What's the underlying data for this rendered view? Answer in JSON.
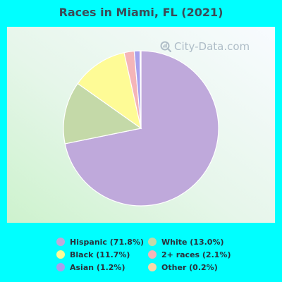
{
  "chart_data": {
    "type": "pie",
    "title": "Races in Miami, FL (2021)",
    "watermark": "City-Data.com",
    "slices": [
      {
        "label": "Hispanic (71.8%)",
        "value": 71.8,
        "color": "#bfa9db"
      },
      {
        "label": "White (13.0%)",
        "value": 13.0,
        "color": "#c4d9a8"
      },
      {
        "label": "Black (11.7%)",
        "value": 11.7,
        "color": "#fefb96"
      },
      {
        "label": "2+ races (2.1%)",
        "value": 2.1,
        "color": "#f5b5b8"
      },
      {
        "label": "Asian (1.2%)",
        "value": 1.2,
        "color": "#a8a0ed"
      },
      {
        "label": "Other (0.2%)",
        "value": 0.2,
        "color": "#f8d9a9"
      }
    ],
    "legend_order": [
      "Hispanic (71.8%)",
      "White (13.0%)",
      "Black (11.7%)",
      "2+ races (2.1%)",
      "Asian (1.2%)",
      "Other (0.2%)"
    ],
    "legend_placement": "bottom"
  }
}
